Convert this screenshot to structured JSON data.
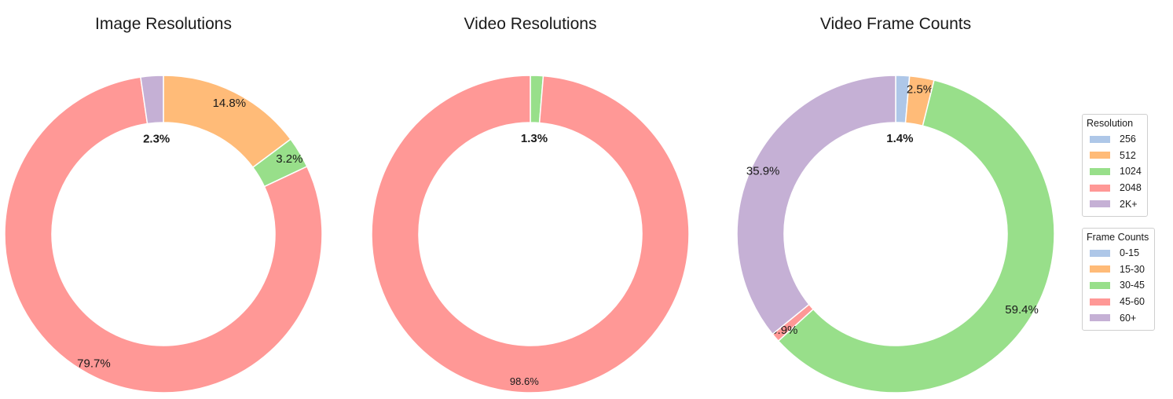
{
  "chart_data": [
    {
      "type": "pie",
      "title": "Image Resolutions",
      "categories": [
        "256",
        "512",
        "1024",
        "2048",
        "2K+"
      ],
      "values": [
        0.0,
        14.8,
        3.2,
        79.7,
        2.3
      ],
      "labels": [
        "",
        "14.8%",
        "3.2%",
        "79.7%",
        "2.3%"
      ],
      "highlight": "2K+",
      "donut": true,
      "start": "top, clockwise"
    },
    {
      "type": "pie",
      "title": "Video Resolutions",
      "categories": [
        "256",
        "512",
        "1024",
        "2048",
        "2K+"
      ],
      "values": [
        0.0,
        0.0,
        1.3,
        98.6,
        0.0
      ],
      "labels": [
        "",
        "",
        "1.3%",
        "98.6%",
        ""
      ],
      "highlight": "1024",
      "donut": true,
      "start": "top, clockwise"
    },
    {
      "type": "pie",
      "title": "Video Frame Counts",
      "categories": [
        "0-15",
        "15-30",
        "30-45",
        "45-60",
        "60+"
      ],
      "values": [
        1.4,
        2.5,
        59.4,
        0.9,
        35.9
      ],
      "labels": [
        "1.4%",
        "2.5%",
        "59.4%",
        "0.9%",
        "35.9%"
      ],
      "highlight": "0-15",
      "donut": true,
      "start": "top, clockwise"
    }
  ],
  "colors": {
    "slice1": "#aec7e8",
    "slice2": "#ffbb78",
    "slice3": "#98df8a",
    "slice4": "#ff9896",
    "slice5": "#c5b0d5"
  },
  "legends": [
    {
      "title": "Resolution",
      "items": [
        "256",
        "512",
        "1024",
        "2048",
        "2K+"
      ]
    },
    {
      "title": "Frame Counts",
      "items": [
        "0-15",
        "15-30",
        "30-45",
        "45-60",
        "60+"
      ]
    }
  ]
}
